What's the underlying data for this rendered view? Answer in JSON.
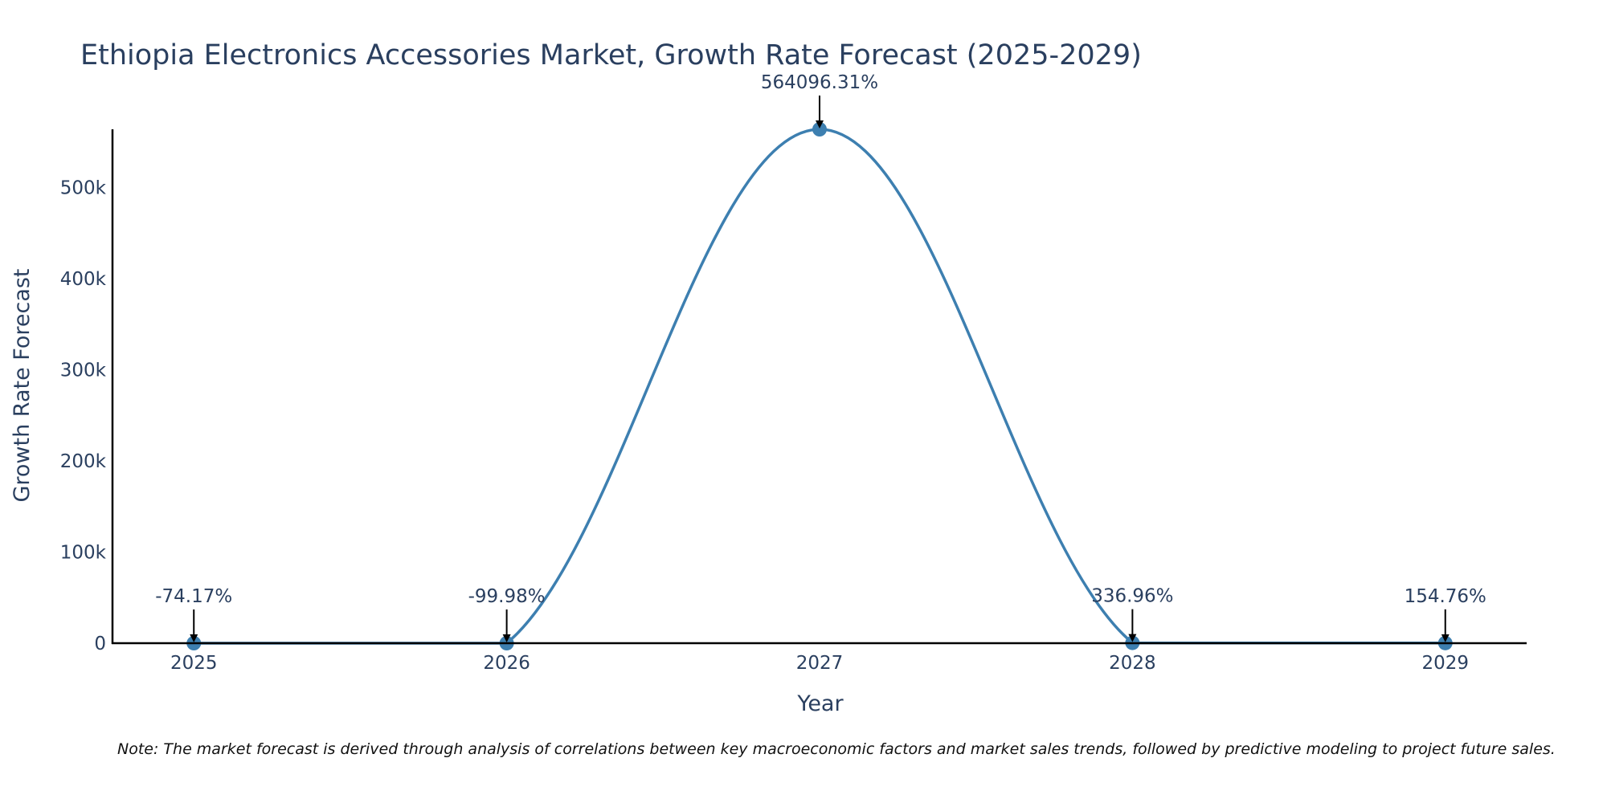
{
  "chart_data": {
    "type": "line",
    "title": "Ethiopia Electronics Accessories Market, Growth Rate Forecast (2025-2029)",
    "xlabel": "Year",
    "ylabel": "Growth Rate Forecast",
    "categories": [
      "2025",
      "2026",
      "2027",
      "2028",
      "2029"
    ],
    "values": [
      -74.17,
      -99.98,
      564096.31,
      336.96,
      154.76
    ],
    "annotations": [
      "-74.17%",
      "-99.98%",
      "564096.31%",
      "336.96%",
      "154.76%"
    ],
    "y_ticks": [
      0,
      100000,
      200000,
      300000,
      400000,
      500000
    ],
    "y_tick_labels": [
      "0",
      "100k",
      "200k",
      "300k",
      "400k",
      "500k"
    ],
    "ylim": [
      0,
      564096.31
    ],
    "xlim": [
      2024.74,
      2029.26
    ],
    "line_color": "#3d7fb0",
    "marker_color": "#3d7fb0",
    "note": "Note: The market forecast is derived through analysis of correlations between key macroeconomic factors and market sales trends, followed by predictive modeling to project future sales."
  }
}
